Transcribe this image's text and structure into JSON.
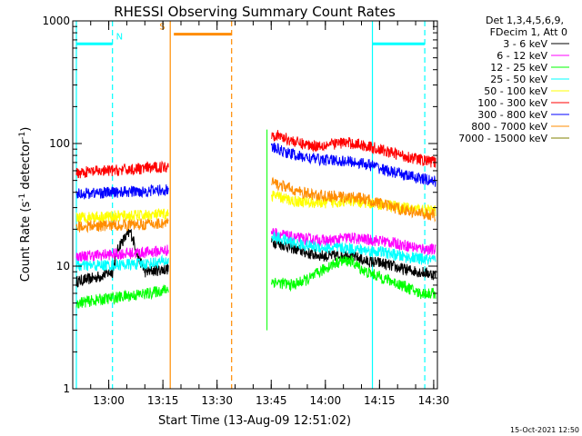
{
  "chart_data": {
    "type": "line",
    "title": "RHESSI Observing Summary Count Rates",
    "xlabel": "Start Time (13-Aug-09 12:51:02)",
    "ylabel_main": "Count Rate (s",
    "ylabel_sup1": "-1",
    "ylabel_mid": " detector",
    "ylabel_sup2": "-1",
    "ylabel_end": ")",
    "yscale": "log",
    "ylim": [
      1,
      1000
    ],
    "xlim_minutes": [
      -1.0,
      100.0
    ],
    "x_ticks": [
      {
        "label": "13:00",
        "minutes": 8.97
      },
      {
        "label": "13:15",
        "minutes": 23.97
      },
      {
        "label": "13:30",
        "minutes": 38.97
      },
      {
        "label": "13:45",
        "minutes": 53.97
      },
      {
        "label": "14:00",
        "minutes": 68.97
      },
      {
        "label": "14:15",
        "minutes": 83.97
      },
      {
        "label": "14:30",
        "minutes": 98.97
      }
    ],
    "y_ticks": [
      {
        "label": "1",
        "value": 1
      },
      {
        "label": "10",
        "value": 10
      },
      {
        "label": "100",
        "value": 100
      },
      {
        "label": "1000",
        "value": 1000
      }
    ],
    "legend_header": [
      "Det 1,3,4,5,6,9,",
      "FDecim 1, Att 0"
    ],
    "legend_position": "right",
    "series": [
      {
        "name": "3 - 6 keV",
        "color": "#000000",
        "segments": [
          {
            "x": [
              0,
              5,
              10,
              12,
              15,
              17,
              19,
              25.5
            ],
            "y": [
              7.5,
              8,
              9,
              15,
              19,
              12,
              9,
              9.5
            ]
          },
          {
            "x": [
              54,
              60,
              65,
              70,
              75,
              80,
              85,
              90,
              95,
              99.5
            ],
            "y": [
              16,
              14,
              12.5,
              12,
              12.5,
              11,
              10.5,
              9.5,
              9,
              8.5
            ]
          }
        ]
      },
      {
        "name": "6 - 12 keV",
        "color": "#ff00ff",
        "segments": [
          {
            "x": [
              0,
              10,
              20,
              25.5
            ],
            "y": [
              12,
              12.5,
              13,
              13.5
            ]
          },
          {
            "x": [
              54,
              60,
              65,
              70,
              75,
              80,
              85,
              90,
              95,
              99.5
            ],
            "y": [
              19,
              17,
              16.5,
              16,
              17,
              16.5,
              16,
              15,
              14,
              13.5
            ]
          }
        ]
      },
      {
        "name": "12 - 25 keV",
        "color": "#00ff00",
        "segments": [
          {
            "x": [
              0,
              10,
              20,
              25.5
            ],
            "y": [
              5,
              5.5,
              6,
              6.5
            ]
          },
          {
            "x": [
              54,
              60,
              65,
              70,
              73,
              76,
              80,
              85,
              90,
              95,
              99.5
            ],
            "y": [
              7.5,
              7,
              8,
              10,
              11,
              11,
              9,
              8,
              7,
              6,
              6
            ]
          }
        ]
      },
      {
        "name": "25 - 50 keV",
        "color": "#00ffff",
        "segments": [
          {
            "x": [
              0,
              10,
              20,
              25.5
            ],
            "y": [
              10,
              10.2,
              10.5,
              11
            ]
          },
          {
            "x": [
              54,
              60,
              65,
              70,
              75,
              80,
              85,
              90,
              95,
              99.5
            ],
            "y": [
              17.5,
              15.5,
              14.5,
              14,
              14,
              13.5,
              13,
              12,
              11.5,
              11
            ]
          }
        ]
      },
      {
        "name": "50 - 100 keV",
        "color": "#ffff00",
        "segments": [
          {
            "x": [
              0,
              10,
              20,
              25.5
            ],
            "y": [
              25,
              25.5,
              26,
              26.5
            ]
          },
          {
            "x": [
              54,
              60,
              65,
              70,
              75,
              80,
              85,
              90,
              95,
              99.5
            ],
            "y": [
              38,
              34,
              33,
              33,
              34,
              33,
              32,
              30,
              29,
              28
            ]
          }
        ]
      },
      {
        "name": "100 - 300 keV",
        "color": "#ff0000",
        "segments": [
          {
            "x": [
              0,
              10,
              20,
              25.5
            ],
            "y": [
              58,
              60,
              63,
              65
            ]
          },
          {
            "x": [
              54,
              58,
              62,
              66,
              70,
              74,
              78,
              82,
              86,
              90,
              95,
              99.5
            ],
            "y": [
              120,
              110,
              100,
              96,
              98,
              102,
              99,
              93,
              86,
              80,
              74,
              70
            ]
          }
        ]
      },
      {
        "name": "300 - 800 keV",
        "color": "#0000ff",
        "segments": [
          {
            "x": [
              0,
              10,
              20,
              25.5
            ],
            "y": [
              39,
              40,
              41,
              42
            ]
          },
          {
            "x": [
              54,
              58,
              62,
              66,
              70,
              74,
              78,
              82,
              86,
              90,
              95,
              99.5
            ],
            "y": [
              93,
              85,
              78,
              75,
              73,
              72,
              70,
              66,
              60,
              56,
              52,
              49
            ]
          }
        ]
      },
      {
        "name": "800 - 7000 keV",
        "color": "#ff8c00",
        "segments": [
          {
            "x": [
              0,
              10,
              20,
              25.5
            ],
            "y": [
              21,
              21.5,
              22,
              22.5
            ]
          },
          {
            "x": [
              54,
              58,
              62,
              66,
              70,
              74,
              78,
              82,
              86,
              90,
              95,
              99.5
            ],
            "y": [
              48,
              44,
              40,
              38,
              37,
              36.5,
              36,
              34,
              31,
              29,
              27,
              26
            ]
          }
        ]
      },
      {
        "name": "7000 - 15000 keV",
        "color": "#808000",
        "segments": []
      }
    ],
    "flags": [
      {
        "label": "N",
        "color": "#00ffff",
        "bars": [
          [
            0,
            10
          ],
          [
            82,
            96.5
          ]
        ],
        "solid_lines": [
          0,
          82
        ],
        "dashed_lines": [
          10,
          96.5
        ],
        "label_at": 11,
        "level": 650
      },
      {
        "label": "S",
        "color": "#ff8c00",
        "bars": [
          [
            27,
            43
          ]
        ],
        "solid_lines": [
          26
        ],
        "dashed_lines": [
          43
        ],
        "label_at": 23,
        "level": 780
      }
    ],
    "gap": {
      "x_start": 52.8,
      "x_end": 53.2,
      "y_from": 3,
      "y_to": 130
    }
  },
  "footer": {
    "timestamp": "15-Oct-2021 12:50"
  }
}
